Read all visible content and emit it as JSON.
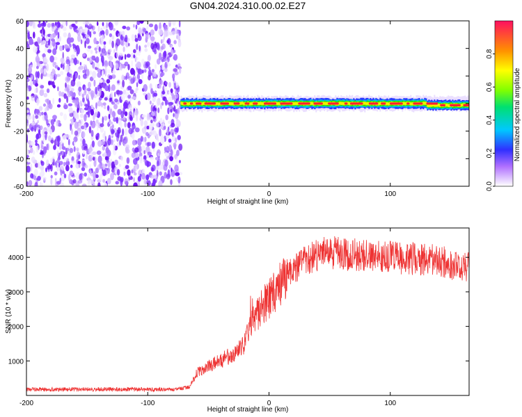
{
  "figure_title": "GN04.2024.310.00.02.E27",
  "chart_data": [
    {
      "type": "heatmap",
      "title": "GN04.2024.310.00.02.E27",
      "xlabel": "Height of straight line (km)",
      "ylabel": "Frequency (Hz)",
      "xlim": [
        -200,
        165
      ],
      "ylim": [
        -60,
        60
      ],
      "x_ticks": [
        -200,
        -100,
        0,
        100
      ],
      "y_ticks": [
        -60,
        -40,
        -20,
        0,
        20,
        40,
        60
      ],
      "noise_region_x": [
        -200,
        -73
      ],
      "carrier_region_x": [
        -73,
        165
      ],
      "carrier_frequency_hz": 0,
      "carrier_halfwidth_hz": 3,
      "colorbar": {
        "label": "Normalized spectral amplitude",
        "range": [
          0,
          1
        ],
        "ticks": [
          0.0,
          0.2,
          0.4,
          0.6,
          0.8
        ],
        "tick_labels": [
          "0.0",
          "0.2",
          "0.4",
          "0.6",
          "0.8"
        ]
      },
      "grid": false
    },
    {
      "type": "line",
      "xlabel": "Height of straight line (km)",
      "ylabel": "SNR (10 * v/v)",
      "xlim": [
        -200,
        165
      ],
      "ylim": [
        0,
        4850
      ],
      "x_ticks": [
        -200,
        -100,
        0,
        100
      ],
      "y_ticks": [
        1000,
        2000,
        3000,
        4000
      ],
      "series": [
        {
          "color": "#ee3333",
          "x": [
            -200,
            -150,
            -100,
            -75,
            -65,
            -60,
            -50,
            -40,
            -30,
            -20,
            -15,
            -10,
            -5,
            0,
            5,
            10,
            15,
            20,
            25,
            30,
            40,
            50,
            60,
            80,
            100,
            120,
            140,
            150,
            160,
            165
          ],
          "y": [
            170,
            180,
            175,
            180,
            250,
            650,
            850,
            1000,
            1200,
            1500,
            2000,
            2300,
            2600,
            2800,
            3050,
            3200,
            3450,
            3650,
            3800,
            3900,
            4050,
            4150,
            4100,
            4050,
            4000,
            3950,
            3900,
            3800,
            3750,
            3700
          ]
        }
      ],
      "grid": false
    }
  ]
}
